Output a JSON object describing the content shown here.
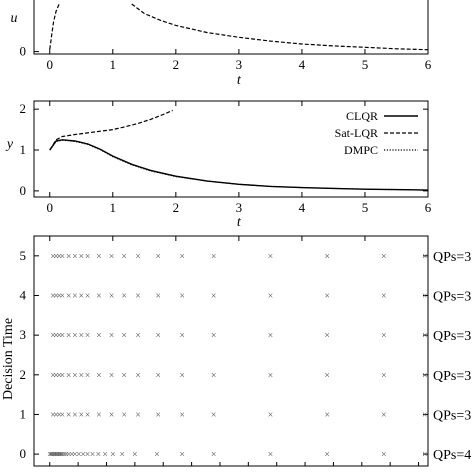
{
  "chart_data": [
    {
      "type": "line",
      "xlabel": "t",
      "ylabel": "u",
      "xlim": [
        -0.25,
        6
      ],
      "x_ticks": [
        "0",
        "1",
        "2",
        "3",
        "4",
        "5",
        "6"
      ],
      "y_ticks": [
        "0"
      ],
      "series": [
        {
          "style": "dashed",
          "x": [
            0.0,
            0.03,
            0.06,
            0.1,
            0.15
          ],
          "y": [
            0.05,
            0.35,
            0.62,
            0.85,
            1.0
          ]
        },
        {
          "style": "dashed",
          "x": [
            1.3,
            1.5,
            1.75,
            2.0,
            2.5,
            3.0,
            3.5,
            4.0,
            4.5,
            5.0,
            5.5,
            6.0
          ],
          "y": [
            1.0,
            0.8,
            0.66,
            0.55,
            0.4,
            0.3,
            0.22,
            0.16,
            0.12,
            0.09,
            0.06,
            0.04
          ]
        }
      ]
    },
    {
      "type": "line",
      "xlabel": "t",
      "ylabel": "y",
      "xlim": [
        -0.25,
        6
      ],
      "ylim": [
        -0.15,
        2.2
      ],
      "x_ticks": [
        "0",
        "1",
        "2",
        "3",
        "4",
        "5",
        "6"
      ],
      "y_ticks": [
        "0",
        "1",
        "2"
      ],
      "legend_position": "top-right",
      "series": [
        {
          "name": "CLQR",
          "style": "solid",
          "x": [
            0.0,
            0.1,
            0.2,
            0.4,
            0.6,
            0.8,
            1.0,
            1.3,
            1.6,
            2.0,
            2.5,
            3.0,
            3.5,
            4.0,
            4.5,
            5.0,
            5.5,
            6.0
          ],
          "y": [
            1.0,
            1.22,
            1.25,
            1.22,
            1.15,
            1.02,
            0.85,
            0.65,
            0.5,
            0.36,
            0.24,
            0.16,
            0.11,
            0.08,
            0.06,
            0.04,
            0.03,
            0.02
          ]
        },
        {
          "name": "Sat-LQR",
          "style": "dashed",
          "x": [
            0.0,
            0.1,
            0.2,
            0.4,
            0.6,
            0.8,
            1.0,
            1.2,
            1.4,
            1.6,
            1.8,
            1.95
          ],
          "y": [
            1.0,
            1.25,
            1.33,
            1.38,
            1.42,
            1.46,
            1.5,
            1.57,
            1.65,
            1.75,
            1.87,
            1.97
          ]
        },
        {
          "name": "DMPC",
          "style": "dotted",
          "x": [
            0.0,
            0.1,
            0.2,
            0.4,
            0.6,
            0.8,
            1.0,
            1.3,
            1.6,
            2.0,
            2.5,
            3.0,
            3.5,
            4.0,
            4.5,
            5.0,
            5.5,
            6.0
          ],
          "y": [
            1.0,
            1.21,
            1.24,
            1.21,
            1.14,
            1.01,
            0.84,
            0.64,
            0.49,
            0.35,
            0.24,
            0.16,
            0.11,
            0.08,
            0.06,
            0.04,
            0.03,
            0.02
          ]
        }
      ]
    },
    {
      "type": "scatter",
      "ylabel": "Decision Time",
      "xlim": [
        -0.25,
        6
      ],
      "ylim": [
        -0.3,
        5.5
      ],
      "y_ticks": [
        "0",
        "1",
        "2",
        "3",
        "4",
        "5"
      ],
      "marker": "×",
      "right_labels": [
        "QPs=4",
        "QPs=3",
        "QPs=3",
        "QPs=3",
        "QPs=3",
        "QPs=3"
      ],
      "rows": [
        {
          "y": 0,
          "x": [
            0.0,
            0.02,
            0.04,
            0.06,
            0.08,
            0.1,
            0.12,
            0.14,
            0.16,
            0.18,
            0.2,
            0.23,
            0.26,
            0.3,
            0.35,
            0.4,
            0.46,
            0.53,
            0.6,
            0.68,
            0.77,
            0.88,
            1.0,
            1.15,
            1.35,
            1.7,
            2.1,
            2.6,
            3.5,
            4.4,
            5.3,
            5.95
          ]
        },
        {
          "y": 1,
          "x": [
            0.05,
            0.1,
            0.15,
            0.2,
            0.3,
            0.4,
            0.5,
            0.6,
            0.78,
            0.98,
            1.18,
            1.4,
            1.72,
            2.1,
            2.6,
            3.5,
            4.4,
            5.3,
            5.95
          ]
        },
        {
          "y": 2,
          "x": [
            0.05,
            0.1,
            0.15,
            0.2,
            0.3,
            0.4,
            0.5,
            0.6,
            0.78,
            0.98,
            1.18,
            1.4,
            1.72,
            2.1,
            2.6,
            3.5,
            4.4,
            5.3,
            5.95
          ]
        },
        {
          "y": 3,
          "x": [
            0.05,
            0.1,
            0.15,
            0.2,
            0.3,
            0.4,
            0.5,
            0.6,
            0.78,
            0.98,
            1.18,
            1.4,
            1.72,
            2.1,
            2.6,
            3.5,
            4.4,
            5.3,
            5.95
          ]
        },
        {
          "y": 4,
          "x": [
            0.05,
            0.1,
            0.15,
            0.2,
            0.3,
            0.4,
            0.5,
            0.6,
            0.78,
            0.98,
            1.18,
            1.4,
            1.72,
            2.1,
            2.6,
            3.5,
            4.4,
            5.3,
            5.95
          ]
        },
        {
          "y": 5,
          "x": [
            0.05,
            0.1,
            0.15,
            0.2,
            0.3,
            0.4,
            0.5,
            0.6,
            0.78,
            0.98,
            1.18,
            1.4,
            1.72,
            2.1,
            2.6,
            3.5,
            4.4,
            5.3,
            5.95
          ]
        }
      ]
    }
  ]
}
